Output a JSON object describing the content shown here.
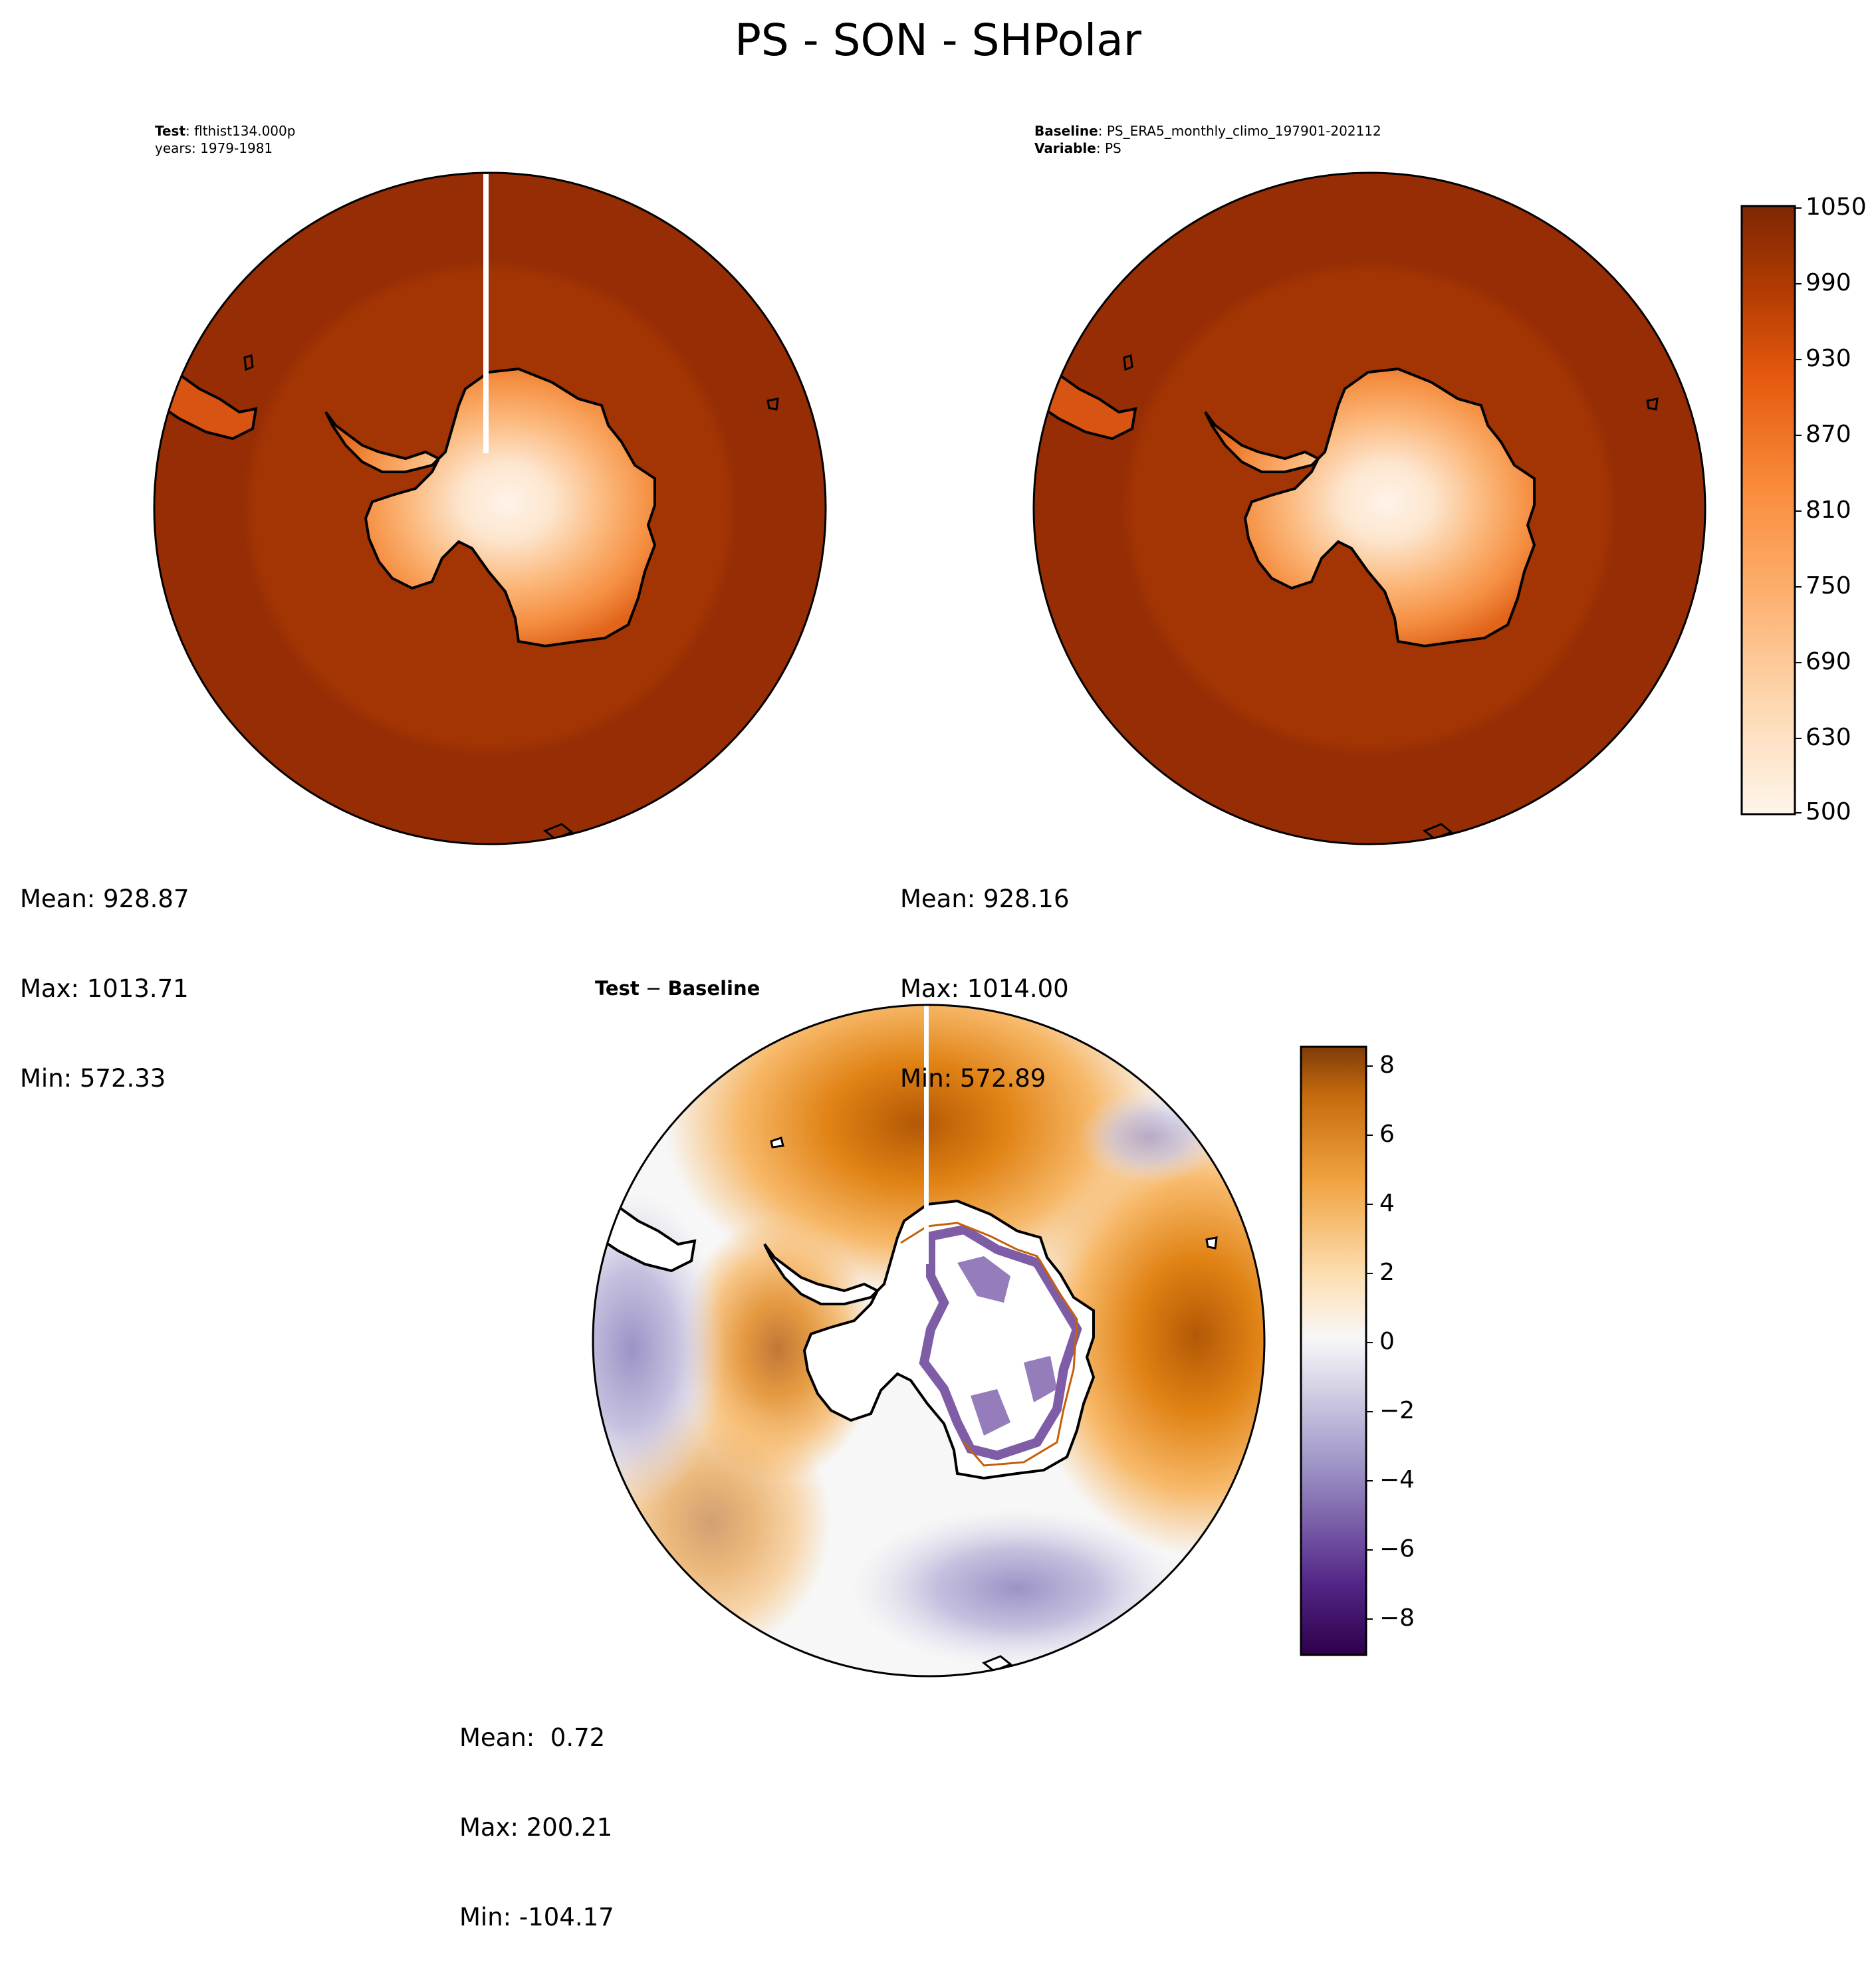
{
  "title": "PS - SON - SHPolar",
  "panels": {
    "test": {
      "label_bold": "Test",
      "label_text": ": flthist134.000p",
      "line2": "years: 1979-1981",
      "mean": "Mean: 928.87",
      "max": "Max: 1013.71",
      "min": "Min: 572.33"
    },
    "baseline": {
      "label_bold": "Baseline",
      "label_text": ": PS_ERA5_monthly_climo_197901-202112",
      "line2_bold": "Variable",
      "line2_text": ": PS",
      "mean": "Mean: 928.16",
      "max": "Max: 1014.00",
      "min": "Min: 572.89"
    },
    "diff": {
      "label_bold1": "Test",
      "label_op": " − ",
      "label_bold2": "Baseline",
      "mean": "Mean:  0.72",
      "max": "Max: 200.21",
      "min": "Min: -104.17"
    }
  },
  "chart_data": [
    {
      "type": "heatmap",
      "panel": "test",
      "projection": "south-polar-stereographic",
      "colormap": "Oranges",
      "colorbar_range": [
        500,
        1050
      ],
      "stats": {
        "mean": 928.87,
        "max": 1013.71,
        "min": 572.33
      }
    },
    {
      "type": "heatmap",
      "panel": "baseline",
      "projection": "south-polar-stereographic",
      "colormap": "Oranges",
      "colorbar_range": [
        500,
        1050
      ],
      "colorbar_ticks": [
        "1050",
        "990",
        "930",
        "870",
        "810",
        "750",
        "690",
        "630",
        "500"
      ],
      "stats": {
        "mean": 928.16,
        "max": 1014.0,
        "min": 572.89
      }
    },
    {
      "type": "heatmap",
      "panel": "diff",
      "projection": "south-polar-stereographic",
      "colormap": "PuOr_r",
      "colorbar_range": [
        -9,
        8.5
      ],
      "colorbar_ticks": [
        "8",
        "6",
        "4",
        "2",
        "0",
        "−2",
        "−4",
        "−6",
        "−8"
      ],
      "stats": {
        "mean": 0.72,
        "max": 200.21,
        "min": -104.17
      }
    }
  ],
  "colors": {
    "ocean_outer": "#962d05",
    "ocean_inner": "#a33504",
    "land_edge": "#f07e2b",
    "land_mid": "#fbb77a",
    "land_high": "#fde6cf",
    "land_top": "#fff3e8",
    "diff_pos_strong": "#b35806",
    "diff_pos": "#f1a04e",
    "diff_zero": "#f7f7f7",
    "diff_neg": "#b7b0d6",
    "diff_neg_strong": "#2d004b"
  }
}
